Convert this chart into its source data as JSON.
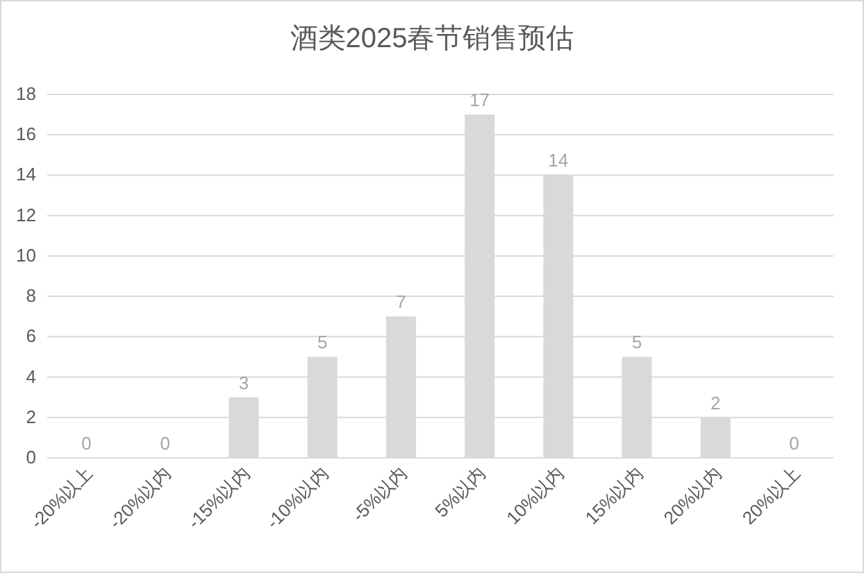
{
  "chart_data": {
    "type": "bar",
    "title": "酒类2025春节销售预估",
    "categories": [
      "-20%以上",
      "-20%以内",
      "-15%以内",
      "-10%以内",
      "-5%以内",
      "5%以内",
      "10%以内",
      "15%以内",
      "20%以内",
      "20%以上"
    ],
    "values": [
      0,
      0,
      3,
      5,
      7,
      17,
      14,
      5,
      2,
      0
    ],
    "color": "#d9d9d9",
    "ylim": [
      0,
      18
    ],
    "yticks": [
      0,
      2,
      4,
      6,
      8,
      10,
      12,
      14,
      16,
      18
    ],
    "grid": "y",
    "data_labels": true
  }
}
